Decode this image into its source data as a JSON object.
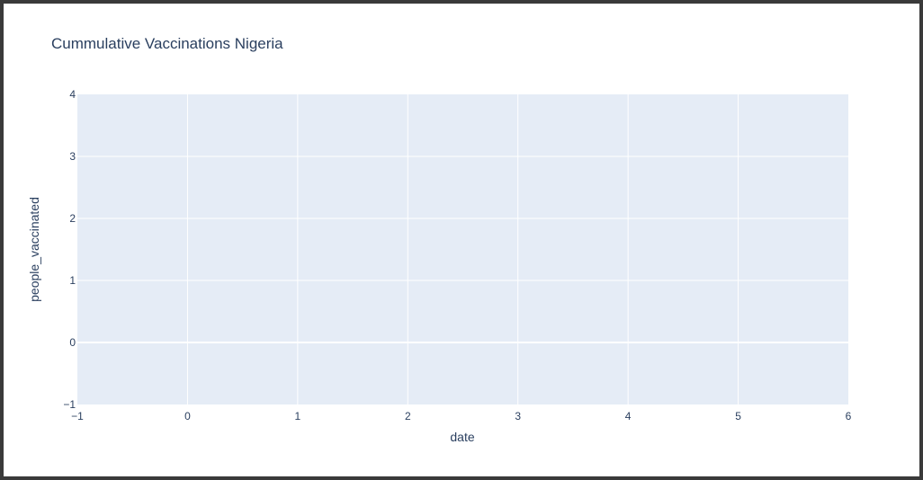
{
  "chart_data": {
    "type": "line",
    "title": "Cummulative Vaccinations Nigeria",
    "xlabel": "date",
    "ylabel": "people_vaccinated",
    "xlim": [
      -1,
      6
    ],
    "ylim": [
      -1,
      4
    ],
    "x_ticks": [
      "−1",
      "0",
      "1",
      "2",
      "3",
      "4",
      "5",
      "6"
    ],
    "y_ticks": [
      "−1",
      "0",
      "1",
      "2",
      "3",
      "4"
    ],
    "series": [],
    "grid": true,
    "legend": "none",
    "colors": {
      "plot_background": "#e5ecf6",
      "grid": "#ffffff",
      "text": "#2a3f5f"
    }
  }
}
